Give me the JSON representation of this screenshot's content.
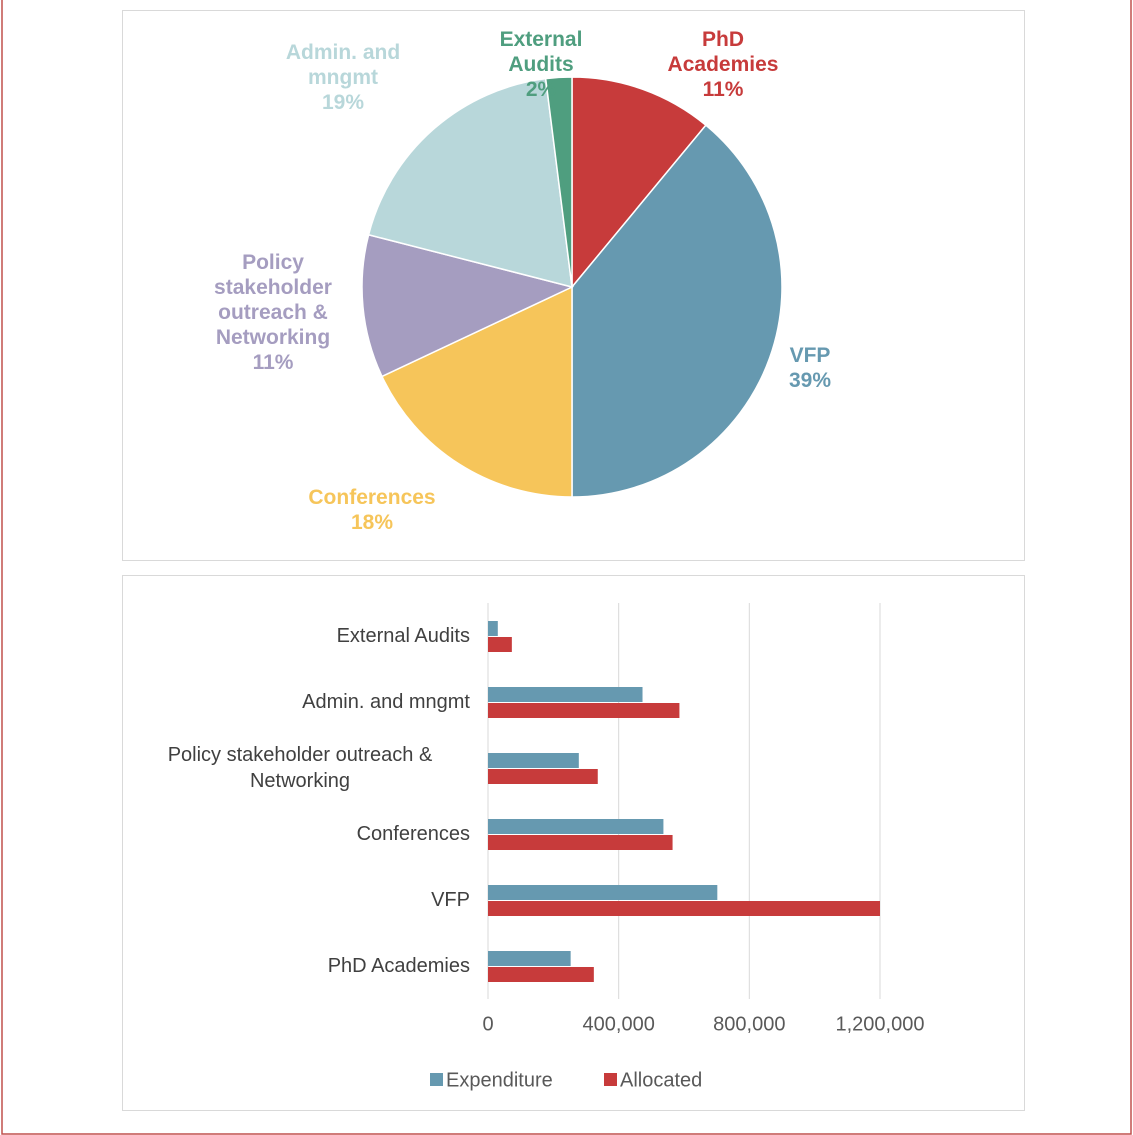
{
  "chart_data": [
    {
      "type": "pie",
      "categories": [
        "PhD Academies",
        "VFP",
        "Conferences",
        "Policy stakeholder outreach & Networking",
        "Admin. and mngmt",
        "External Audits"
      ],
      "values": [
        11,
        39,
        18,
        11,
        19,
        2
      ],
      "value_labels": [
        "11%",
        "39%",
        "18%",
        "11%",
        "19%",
        "2%"
      ],
      "colors": [
        "#c73b3b",
        "#6699b0",
        "#f6c55a",
        "#a59dc0",
        "#b8d7da",
        "#4f9e7f"
      ]
    },
    {
      "type": "bar",
      "orientation": "horizontal",
      "categories": [
        "External Audits",
        "Admin. and mngmt",
        "Policy stakeholder outreach & Networking",
        "Conferences",
        "VFP",
        "PhD Academies"
      ],
      "series": [
        {
          "name": "Expenditure",
          "color": "#6699b0",
          "values": [
            30000,
            473000,
            278000,
            537000,
            702000,
            253000
          ]
        },
        {
          "name": "Allocated",
          "color": "#c73b3b",
          "values": [
            73000,
            586000,
            336000,
            565000,
            1200000,
            324000
          ]
        }
      ],
      "xlim": [
        0,
        1200000
      ],
      "xticks": [
        0,
        {
          "value": 400000,
          "label": "400,000"
        },
        {
          "value": 800000,
          "label": "800,000"
        },
        {
          "value": 1200000,
          "label": "1,200,000"
        }
      ],
      "grid": true,
      "legend": "bottom"
    }
  ]
}
